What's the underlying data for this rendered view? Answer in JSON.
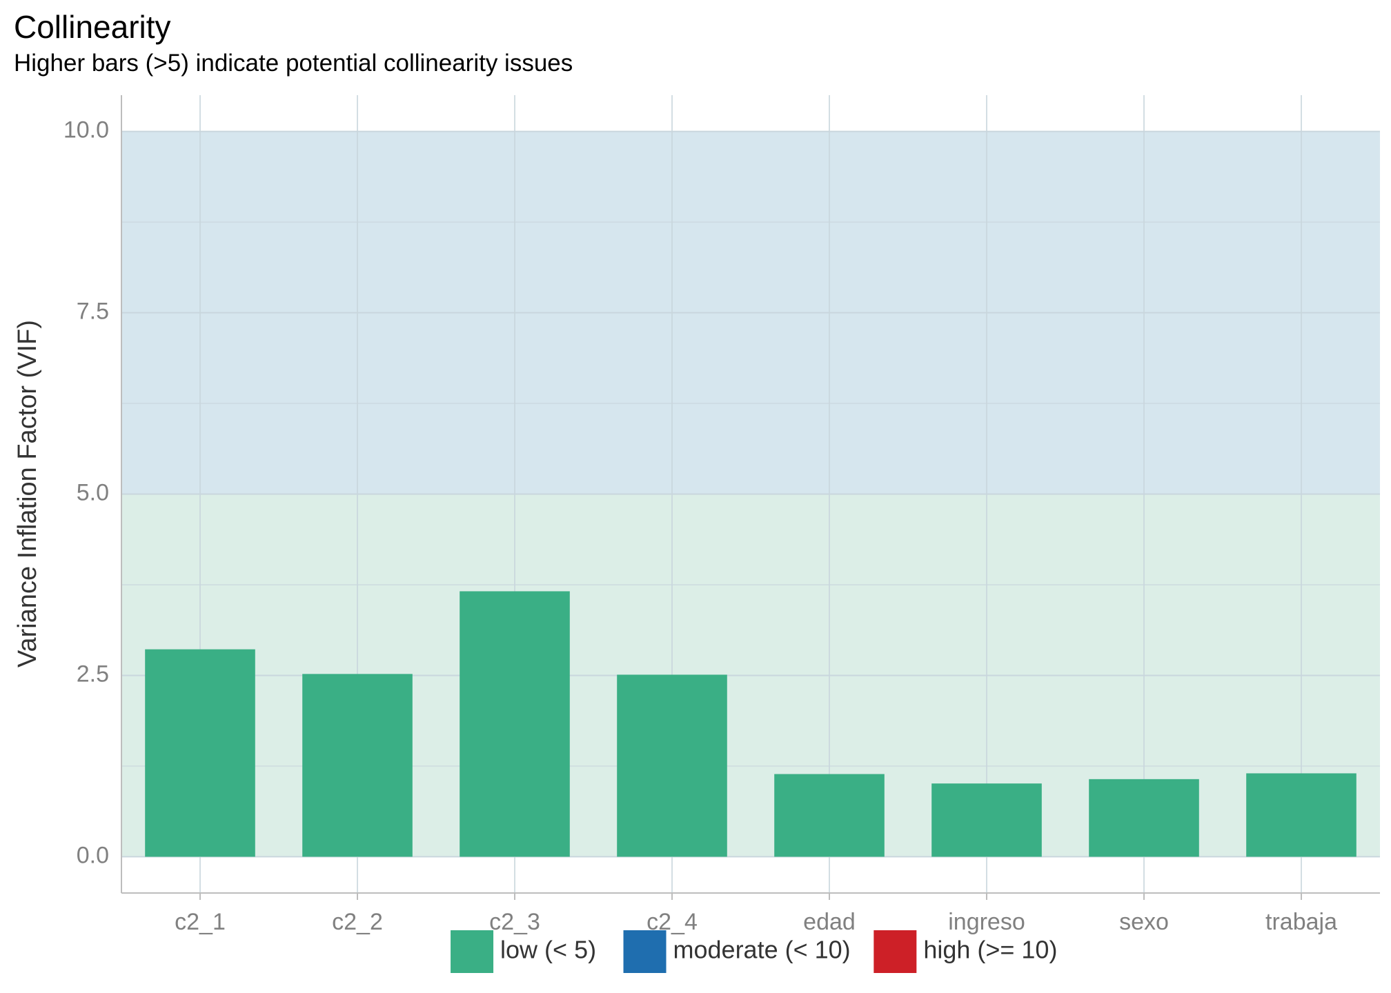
{
  "title": "Collinearity",
  "subtitle": "Higher bars (>5) indicate potential collinearity issues",
  "colors": {
    "low": "#3AAF85",
    "moderate": "#1F6EAF",
    "high": "#CD2027",
    "band_low": "#DCEEE7",
    "band_moderate": "#D6E6EE",
    "grid": "#C9D6DD",
    "axis": "#BDBDBD"
  },
  "chart_data": {
    "type": "bar",
    "categories": [
      "c2_1",
      "c2_2",
      "c2_3",
      "c2_4",
      "edad",
      "ingreso",
      "sexo",
      "trabaja"
    ],
    "values": [
      2.86,
      2.52,
      3.66,
      2.51,
      1.14,
      1.01,
      1.07,
      1.15
    ],
    "ylabel": "Variance Inflation Factor (VIF)",
    "xlabel": "",
    "ylim": [
      -0.5,
      10.5
    ],
    "yticks": [
      "0.0",
      "2.5",
      "5.0",
      "7.5",
      "10.0"
    ],
    "ytick_values": [
      0,
      2.5,
      5,
      7.5,
      10
    ],
    "bands": [
      {
        "from": 0,
        "to": 5,
        "color": "#DCEEE7"
      },
      {
        "from": 5,
        "to": 10,
        "color": "#D6E6EE"
      }
    ],
    "grid": true,
    "legend_position": "bottom",
    "legend": [
      {
        "label": "low (< 5)",
        "color": "#3AAF85"
      },
      {
        "label": "moderate (< 10)",
        "color": "#1F6EAF"
      },
      {
        "label": "high (>= 10)",
        "color": "#CD2027"
      }
    ]
  }
}
